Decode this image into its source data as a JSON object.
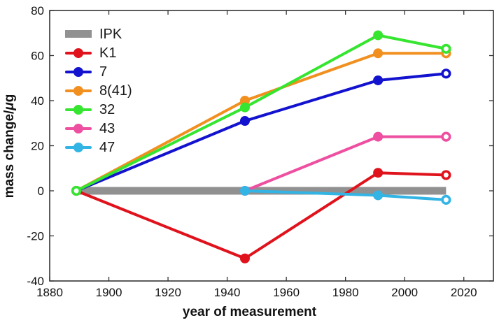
{
  "chart_data": {
    "type": "line",
    "title": "",
    "xlabel": "year of measurement",
    "ylabel": "mass change/μg",
    "xlim": [
      1880,
      2030
    ],
    "ylim": [
      -40,
      80
    ],
    "xticks": [
      1880,
      1900,
      1920,
      1940,
      1960,
      1980,
      2000,
      2020
    ],
    "yticks": [
      -40,
      -20,
      0,
      20,
      40,
      60,
      80
    ],
    "grid": false,
    "legend_position": "top-left-inside",
    "axis_color": "#333333",
    "series": [
      {
        "name": "IPK",
        "style": "thick-bar",
        "color": "#919191",
        "x": [
          1889,
          2014
        ],
        "values": [
          0,
          0
        ]
      },
      {
        "name": "K1",
        "style": "line-markers",
        "color": "#e0121c",
        "x": [
          1889,
          1946,
          1991,
          2014
        ],
        "values": [
          0,
          -30,
          8,
          7
        ],
        "open_marker": [
          false,
          false,
          false,
          true
        ]
      },
      {
        "name": "7",
        "style": "line-markers",
        "color": "#1212cf",
        "x": [
          1889,
          1946,
          1991,
          2014
        ],
        "values": [
          0,
          31,
          49,
          52
        ],
        "open_marker": [
          false,
          false,
          false,
          true
        ]
      },
      {
        "name": "8(41)",
        "style": "line-markers",
        "color": "#f18f1f",
        "x": [
          1889,
          1946,
          1991,
          2014
        ],
        "values": [
          0,
          40,
          61,
          61
        ],
        "open_marker": [
          false,
          false,
          false,
          true
        ]
      },
      {
        "name": "32",
        "style": "line-markers",
        "color": "#35e52f",
        "x": [
          1889,
          1946,
          1991,
          2014
        ],
        "values": [
          0,
          37,
          69,
          63
        ],
        "open_marker": [
          true,
          false,
          false,
          true
        ]
      },
      {
        "name": "43",
        "style": "line-markers",
        "color": "#ee4fa0",
        "x": [
          1946,
          1991,
          2014
        ],
        "values": [
          0,
          24,
          24
        ],
        "open_marker": [
          false,
          false,
          true
        ]
      },
      {
        "name": "47",
        "style": "line-markers",
        "color": "#32b4e4",
        "x": [
          1946,
          1991,
          2014
        ],
        "values": [
          0,
          -2,
          -4
        ],
        "open_marker": [
          false,
          false,
          true
        ]
      }
    ]
  }
}
